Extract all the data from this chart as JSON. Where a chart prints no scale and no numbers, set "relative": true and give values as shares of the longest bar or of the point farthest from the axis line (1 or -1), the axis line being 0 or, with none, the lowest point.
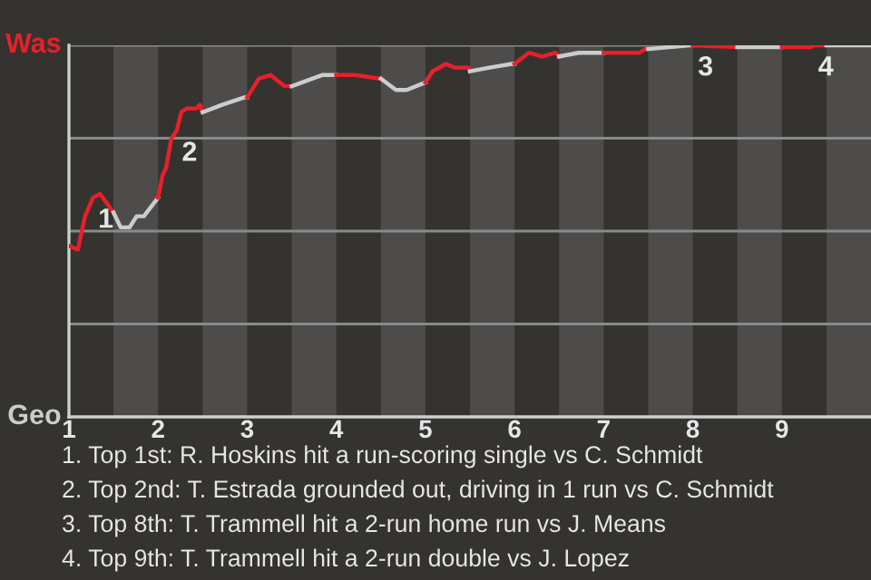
{
  "chart_data": {
    "type": "line",
    "relative": true,
    "xlim": [
      1,
      10
    ],
    "xticks": [
      1,
      2,
      3,
      4,
      5,
      6,
      7,
      8,
      9
    ],
    "series": [
      {
        "color": "#e8202a",
        "x": [
          1.0,
          1.1,
          1.18,
          1.27,
          1.35,
          1.5
        ],
        "values": [
          0.46,
          0.45,
          0.54,
          0.59,
          0.6,
          0.55
        ]
      },
      {
        "color": "#cccccc",
        "x": [
          1.5,
          1.58,
          1.68,
          1.76,
          1.84,
          2.0
        ],
        "values": [
          0.55,
          0.51,
          0.51,
          0.54,
          0.54,
          0.59
        ]
      },
      {
        "color": "#e8202a",
        "x": [
          2.0,
          2.05,
          2.09,
          2.15,
          2.21,
          2.26,
          2.32,
          2.43,
          2.47,
          2.5
        ],
        "values": [
          0.59,
          0.65,
          0.67,
          0.75,
          0.77,
          0.82,
          0.83,
          0.83,
          0.84,
          0.82
        ]
      },
      {
        "color": "#cccccc",
        "x": [
          2.5,
          2.72,
          2.97,
          3.0
        ],
        "values": [
          0.82,
          0.84,
          0.86,
          0.86
        ]
      },
      {
        "color": "#e8202a",
        "x": [
          3.0,
          3.13,
          3.26,
          3.42,
          3.5
        ],
        "values": [
          0.86,
          0.91,
          0.92,
          0.89,
          0.89
        ]
      },
      {
        "color": "#cccccc",
        "x": [
          3.5,
          3.84,
          4.0
        ],
        "values": [
          0.89,
          0.92,
          0.92
        ]
      },
      {
        "color": "#e8202a",
        "x": [
          4.0,
          4.21,
          4.5
        ],
        "values": [
          0.92,
          0.92,
          0.91
        ]
      },
      {
        "color": "#cccccc",
        "x": [
          4.5,
          4.67,
          4.79,
          5.0
        ],
        "values": [
          0.91,
          0.88,
          0.88,
          0.9
        ]
      },
      {
        "color": "#e8202a",
        "x": [
          5.0,
          5.08,
          5.23,
          5.33,
          5.48,
          5.5
        ],
        "values": [
          0.9,
          0.93,
          0.95,
          0.94,
          0.94,
          0.93
        ]
      },
      {
        "color": "#cccccc",
        "x": [
          5.5,
          5.72,
          5.97,
          6.0
        ],
        "values": [
          0.93,
          0.94,
          0.95,
          0.95
        ]
      },
      {
        "color": "#e8202a",
        "x": [
          6.0,
          6.16,
          6.31,
          6.46,
          6.5
        ],
        "values": [
          0.95,
          0.98,
          0.97,
          0.98,
          0.97
        ]
      },
      {
        "color": "#cccccc",
        "x": [
          6.5,
          6.72,
          7.0
        ],
        "values": [
          0.97,
          0.98,
          0.98
        ]
      },
      {
        "color": "#e8202a",
        "x": [
          7.0,
          7.4,
          7.47,
          7.5
        ],
        "values": [
          0.98,
          0.98,
          0.99,
          0.99
        ]
      },
      {
        "color": "#cccccc",
        "x": [
          7.5,
          7.97,
          8.0
        ],
        "values": [
          0.99,
          1.0,
          1.0
        ]
      },
      {
        "color": "#e8202a",
        "x": [
          8.0,
          8.5
        ],
        "values": [
          1.0,
          0.995
        ]
      },
      {
        "color": "#cccccc",
        "x": [
          8.5,
          9.0
        ],
        "values": [
          0.995,
          0.995
        ]
      },
      {
        "color": "#e8202a",
        "x": [
          9.0,
          9.33,
          9.35,
          9.5
        ],
        "values": [
          0.995,
          0.995,
          1.0,
          1.0
        ]
      },
      {
        "color": "#cccccc",
        "x": [
          9.5,
          10.0
        ],
        "values": [
          1.0,
          1.0
        ]
      }
    ],
    "bands": [
      {
        "axis": "x",
        "from": 1.5,
        "to": 2,
        "color": "#4d4c4a"
      },
      {
        "axis": "x",
        "from": 2.5,
        "to": 3,
        "color": "#4d4c4a"
      },
      {
        "axis": "x",
        "from": 3.5,
        "to": 4,
        "color": "#4d4c4a"
      },
      {
        "axis": "x",
        "from": 4.5,
        "to": 5,
        "color": "#4d4c4a"
      },
      {
        "axis": "x",
        "from": 5.5,
        "to": 6,
        "color": "#4d4c4a"
      },
      {
        "axis": "x",
        "from": 6.5,
        "to": 7,
        "color": "#4d4c4a"
      },
      {
        "axis": "x",
        "from": 7.5,
        "to": 8,
        "color": "#4d4c4a"
      },
      {
        "axis": "x",
        "from": 8.5,
        "to": 9,
        "color": "#4d4c4a"
      },
      {
        "axis": "x",
        "from": 9.5,
        "to": 10,
        "color": "#4d4c4a"
      }
    ],
    "ref_lines": [
      {
        "axis": "y",
        "value": 0.25,
        "color": "#8a8a8a"
      },
      {
        "axis": "y",
        "value": 0.5,
        "color": "#8a8a8a"
      },
      {
        "axis": "y",
        "value": 0.75,
        "color": "#8a8a8a"
      },
      {
        "axis": "y",
        "value": 1.0,
        "color": "#8a8a8a"
      }
    ],
    "annotations": [
      "Was",
      "Geo",
      {
        "text": "1",
        "x": 1.27,
        "y": 0.59
      },
      {
        "text": "2",
        "x": 2.21,
        "y": 0.77
      },
      {
        "text": "3",
        "x": 8.0,
        "y": 1.0
      },
      {
        "text": "4",
        "x": 9.35,
        "y": 1.0
      },
      "1. Top 1st: R. Hoskins hit a run-scoring single vs C. Schmidt",
      "2. Top 2nd: T. Estrada grounded out, driving in 1 run vs C. Schmidt",
      "3. Top 8th: T. Trammell hit a 2-run home run vs J. Means",
      "4. Top 9th: T. Trammell hit a 2-run double vs J. Lopez"
    ],
    "grid": false,
    "legend": false,
    "marker": "none",
    "line_style": "solid"
  }
}
